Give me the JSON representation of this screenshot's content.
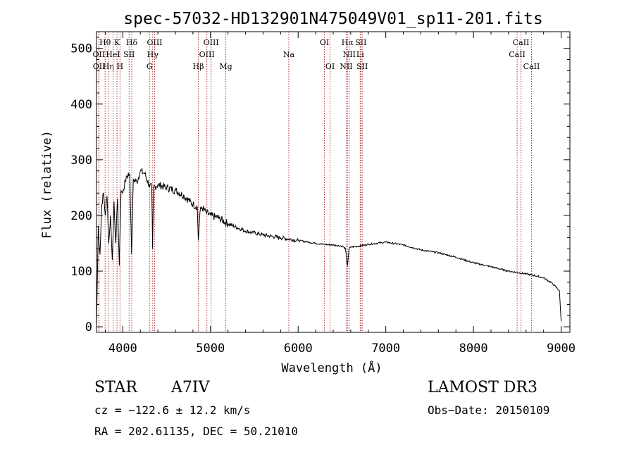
{
  "chart_data": {
    "type": "line",
    "title": "spec-57032-HD132901N475049V01_sp11-201.fits",
    "xlabel": "Wavelength (Å)",
    "ylabel": "Flux (relative)",
    "xlim": [
      3700,
      9100
    ],
    "ylim": [
      -10,
      530
    ],
    "x_ticks": [
      4000,
      5000,
      6000,
      7000,
      8000,
      9000
    ],
    "y_ticks": [
      0,
      100,
      200,
      300,
      400,
      500
    ],
    "grid": false,
    "series": [
      {
        "name": "spectrum",
        "x": [
          3700,
          3720,
          3740,
          3760,
          3780,
          3800,
          3820,
          3840,
          3860,
          3880,
          3900,
          3920,
          3940,
          3960,
          3970,
          3980,
          4000,
          4040,
          4080,
          4100,
          4120,
          4160,
          4200,
          4250,
          4300,
          4330,
          4340,
          4350,
          4400,
          4500,
          4600,
          4700,
          4800,
          4850,
          4861,
          4880,
          4900,
          4950,
          5000,
          5100,
          5200,
          5400,
          5600,
          5800,
          6000,
          6200,
          6300,
          6400,
          6500,
          6540,
          6563,
          6580,
          6600,
          6700,
          6800,
          7000,
          7200,
          7400,
          7600,
          7800,
          8000,
          8200,
          8400,
          8600,
          8700,
          8800,
          8900,
          8980,
          9000
        ],
        "values": [
          0,
          180,
          130,
          220,
          240,
          200,
          235,
          150,
          200,
          120,
          225,
          150,
          230,
          110,
          180,
          245,
          240,
          270,
          275,
          130,
          265,
          260,
          280,
          275,
          255,
          250,
          140,
          250,
          255,
          250,
          245,
          235,
          220,
          215,
          155,
          205,
          215,
          205,
          200,
          195,
          185,
          172,
          165,
          160,
          155,
          150,
          148,
          147,
          145,
          140,
          110,
          140,
          143,
          145,
          148,
          152,
          147,
          138,
          133,
          125,
          115,
          108,
          100,
          95,
          92,
          88,
          78,
          65,
          10
        ]
      }
    ],
    "line_markers": [
      {
        "label": "Hθ",
        "x": 3798,
        "row": 0
      },
      {
        "label": "OII",
        "x": 3727,
        "row": 1
      },
      {
        "label": "OII",
        "x": 3729,
        "row": 2
      },
      {
        "label": "Hη",
        "x": 3835,
        "row": 2
      },
      {
        "label": "K",
        "x": 3934,
        "row": 0
      },
      {
        "label": "HeI",
        "x": 3889,
        "row": 1
      },
      {
        "label": "H",
        "x": 3968,
        "row": 2
      },
      {
        "label": "Hδ",
        "x": 4102,
        "row": 0
      },
      {
        "label": "SII",
        "x": 4072,
        "row": 1
      },
      {
        "label": "OIII",
        "x": 4363,
        "row": 0
      },
      {
        "label": "Hγ",
        "x": 4341,
        "row": 1
      },
      {
        "label": "G",
        "x": 4305,
        "row": 2
      },
      {
        "label": "OIII",
        "x": 5007,
        "row": 0
      },
      {
        "label": "OIII",
        "x": 4959,
        "row": 1
      },
      {
        "label": "Hβ",
        "x": 4861,
        "row": 2
      },
      {
        "label": "Mg",
        "x": 5175,
        "row": 2
      },
      {
        "label": "Na",
        "x": 5893,
        "row": 1
      },
      {
        "label": "OI",
        "x": 6300,
        "row": 0
      },
      {
        "label": "OI",
        "x": 6364,
        "row": 2
      },
      {
        "label": "Hα",
        "x": 6563,
        "row": 0
      },
      {
        "label": "SII",
        "x": 6716,
        "row": 0
      },
      {
        "label": "NII",
        "x": 6583,
        "row": 1
      },
      {
        "label": "Li",
        "x": 6708,
        "row": 1
      },
      {
        "label": "NII",
        "x": 6548,
        "row": 2
      },
      {
        "label": "SII",
        "x": 6731,
        "row": 2
      },
      {
        "label": "CaII",
        "x": 8542,
        "row": 0
      },
      {
        "label": "CaII",
        "x": 8498,
        "row": 1
      },
      {
        "label": "CaII",
        "x": 8662,
        "row": 2
      }
    ]
  },
  "info": {
    "object_type": "STAR",
    "subclass": "A7IV",
    "survey": "LAMOST DR3",
    "cz": "cz = −122.6 ± 12.2 km/s",
    "obs_date": "Obs−Date: 20150109",
    "coords": "RA = 202.61135, DEC =  50.21010"
  }
}
